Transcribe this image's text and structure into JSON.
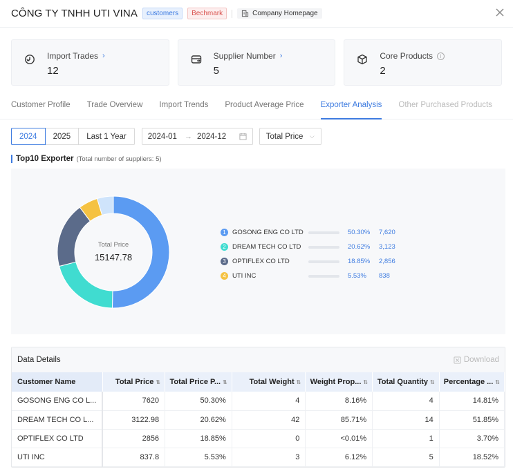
{
  "header": {
    "company": "CÔNG TY TNHH UTI VINA",
    "tag_customers": "customers",
    "tag_benchmark": "Bechmark",
    "homepage_label": "Company Homepage"
  },
  "stats": [
    {
      "label": "Import Trades",
      "value": "12",
      "icon": "import-trades-icon"
    },
    {
      "label": "Supplier Number",
      "value": "5",
      "icon": "supplier-icon"
    },
    {
      "label": "Core Products",
      "value": "2",
      "icon": "box-icon"
    }
  ],
  "tabs": [
    {
      "label": "Customer Profile",
      "state": "normal"
    },
    {
      "label": "Trade Overview",
      "state": "normal"
    },
    {
      "label": "Import Trends",
      "state": "normal"
    },
    {
      "label": "Product Average Price",
      "state": "normal"
    },
    {
      "label": "Exporter Analysis",
      "state": "active"
    },
    {
      "label": "Other Purchased Products",
      "state": "disabled"
    }
  ],
  "filters": {
    "periods": [
      "2024",
      "2025",
      "Last 1 Year"
    ],
    "selected_period": "2024",
    "date_start": "2024-01",
    "date_arrow": "→",
    "date_end": "2024-12",
    "metric": "Total Price"
  },
  "section": {
    "title": "Top10 Exporter",
    "subtitle": "(Total number of suppliers: 5)"
  },
  "donut": {
    "center_label": "Total Price",
    "center_value": "15147.78"
  },
  "chart_data": {
    "type": "pie",
    "title": "",
    "slices": [
      {
        "name": "GOSONG ENG CO LTD",
        "value": 7620,
        "color": "#5b9bf2"
      },
      {
        "name": "DREAM TECH CO LTD",
        "value": 3122.98,
        "color": "#40dcd0"
      },
      {
        "name": "OPTIFLEX CO LTD",
        "value": 2856,
        "color": "#5b6b8a"
      },
      {
        "name": "UTI INC",
        "value": 837.8,
        "color": "#f5c242"
      },
      {
        "value": 711,
        "color": "#cfe4fb"
      }
    ],
    "center_label": "Total Price",
    "center_value": 15147.78
  },
  "legend": [
    {
      "num": "1",
      "name": "GOSONG ENG CO LTD",
      "pct": "50.30%",
      "pct_value": 50.3,
      "count": "7,620",
      "color": "#5b9bf2"
    },
    {
      "num": "2",
      "name": "DREAM TECH CO LTD",
      "pct": "20.62%",
      "pct_value": 20.62,
      "count": "3,123",
      "color": "#40dcd0"
    },
    {
      "num": "3",
      "name": "OPTIFLEX CO LTD",
      "pct": "18.85%",
      "pct_value": 18.85,
      "count": "2,856",
      "color": "#5b6b8a"
    },
    {
      "num": "4",
      "name": "UTI INC",
      "pct": "5.53%",
      "pct_value": 5.53,
      "count": "838",
      "color": "#f5c242"
    }
  ],
  "details": {
    "title": "Data Details",
    "download_label": "Download",
    "columns": [
      "Customer Name",
      "Total Price",
      "Total Price P...",
      "Total Weight",
      "Weight Prop...",
      "Total Quantity",
      "Percentage ..."
    ],
    "rows": [
      [
        "GOSONG ENG CO L...",
        "7620",
        "50.30%",
        "4",
        "8.16%",
        "4",
        "14.81%"
      ],
      [
        "DREAM TECH CO L...",
        "3122.98",
        "20.62%",
        "42",
        "85.71%",
        "14",
        "51.85%"
      ],
      [
        "OPTIFLEX CO LTD",
        "2856",
        "18.85%",
        "0",
        "<0.01%",
        "1",
        "3.70%"
      ],
      [
        "UTI INC",
        "837.8",
        "5.53%",
        "3",
        "6.12%",
        "5",
        "18.52%"
      ]
    ]
  }
}
